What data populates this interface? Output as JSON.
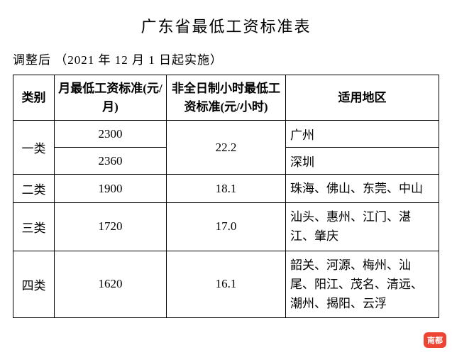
{
  "title": "广东省最低工资标准表",
  "subtitle": "调整后 （2021 年 12 月 1 日起实施）",
  "headers": {
    "category": "类别",
    "monthly": "月最低工资标准(元/月)",
    "hourly": "非全日制小时最低工资标准(元/小时)",
    "region": "适用地区"
  },
  "rows": {
    "cat1": {
      "label": "一类",
      "monthly1": "2300",
      "monthly2": "2360",
      "hourly": "22.2",
      "region1": "广州",
      "region2": "深圳"
    },
    "cat2": {
      "label": "二类",
      "monthly": "1900",
      "hourly": "18.1",
      "region": "珠海、佛山、东莞、中山"
    },
    "cat3": {
      "label": "三类",
      "monthly": "1720",
      "hourly": "17.0",
      "region": "汕头、惠州、江门、湛江、肇庆"
    },
    "cat4": {
      "label": "四类",
      "monthly": "1620",
      "hourly": "16.1",
      "region": "韶关、河源、梅州、汕尾、阳江、茂名、清远、潮州、揭阳、云浮"
    }
  },
  "badge": "南都",
  "style": {
    "title_fontsize": 22,
    "body_fontsize": 17,
    "border_color": "#000000",
    "background_color": "#ffffff",
    "badge_bg": "#ee4433",
    "badge_fg": "#ffffff"
  }
}
